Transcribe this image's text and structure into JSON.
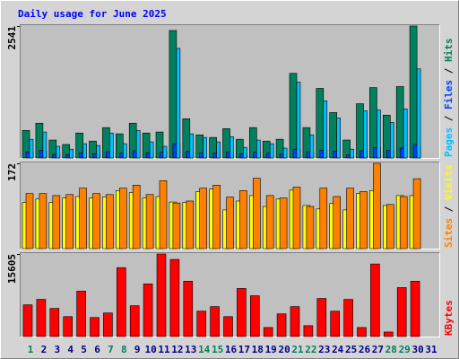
{
  "chart_data": [
    {
      "type": "bar",
      "title": "Daily usage for June 2025",
      "ylim": [
        0,
        2541
      ],
      "yticks": [
        2541
      ],
      "legend_separator": " / ",
      "series": [
        {
          "name": "Pages",
          "color": "#00c0ff",
          "values": [
            360,
            500,
            225,
            170,
            275,
            240,
            480,
            275,
            530,
            310,
            225,
            2110,
            465,
            395,
            310,
            410,
            205,
            345,
            275,
            190,
            1460,
            445,
            1100,
            770,
            170,
            910,
            925,
            685,
            945,
            1715,
            0
          ]
        },
        {
          "name": "Files",
          "color": "#0040ff",
          "values": [
            120,
            150,
            70,
            60,
            100,
            80,
            120,
            90,
            140,
            100,
            110,
            275,
            130,
            100,
            90,
            120,
            80,
            110,
            90,
            70,
            170,
            120,
            150,
            130,
            60,
            140,
            200,
            150,
            190,
            260,
            0
          ]
        },
        {
          "name": "Hits",
          "color": "#00805c",
          "values": [
            530,
            670,
            345,
            260,
            480,
            325,
            585,
            465,
            670,
            480,
            500,
            2455,
            755,
            445,
            395,
            565,
            360,
            585,
            325,
            360,
            1630,
            585,
            1340,
            875,
            345,
            1045,
            1355,
            825,
            1375,
            2541,
            0
          ]
        }
      ]
    },
    {
      "type": "bar",
      "ylim": [
        0,
        172
      ],
      "yticks": [
        172
      ],
      "legend_separator": " / ",
      "series": [
        {
          "name": "Sites",
          "color": "#ff8000",
          "values": [
            111,
            111,
            107,
            109,
            122,
            111,
            109,
            122,
            128,
            109,
            137,
            92,
            96,
            122,
            128,
            104,
            117,
            142,
            107,
            102,
            124,
            85,
            122,
            105,
            122,
            115,
            172,
            89,
            105,
            141,
            0
          ]
        },
        {
          "name": "Visits",
          "color": "#ffff00",
          "values": [
            93,
            100,
            93,
            102,
            105,
            102,
            104,
            117,
            113,
            102,
            105,
            94,
            93,
            115,
            120,
            78,
            96,
            107,
            85,
            100,
            118,
            87,
            80,
            91,
            78,
            111,
            117,
            87,
            107,
            107,
            0
          ]
        }
      ]
    },
    {
      "type": "bar",
      "ylim": [
        0,
        15605
      ],
      "yticks": [
        15605
      ],
      "series": [
        {
          "name": "KBytes",
          "color": "#ff0000",
          "values": [
            6000,
            7030,
            5320,
            3770,
            8580,
            3600,
            4460,
            13030,
            5830,
            9950,
            15605,
            14580,
            10460,
            4800,
            5660,
            3770,
            9090,
            7720,
            1715,
            4290,
            5660,
            2060,
            7200,
            4800,
            7030,
            1715,
            13720,
            860,
            9260,
            10460,
            0
          ]
        }
      ],
      "categories": [
        "1",
        "2",
        "3",
        "4",
        "5",
        "6",
        "7",
        "8",
        "9",
        "10",
        "11",
        "12",
        "13",
        "14",
        "15",
        "16",
        "17",
        "18",
        "19",
        "20",
        "21",
        "22",
        "23",
        "24",
        "25",
        "26",
        "27",
        "28",
        "29",
        "30",
        "31"
      ],
      "category_colors": [
        "#00805c",
        "#00008b",
        "#00008b",
        "#00008b",
        "#00008b",
        "#00008b",
        "#00805c",
        "#00805c",
        "#00008b",
        "#00008b",
        "#00008b",
        "#00008b",
        "#00008b",
        "#00805c",
        "#00805c",
        "#00008b",
        "#00008b",
        "#00008b",
        "#00008b",
        "#00008b",
        "#00805c",
        "#00805c",
        "#00008b",
        "#00008b",
        "#00008b",
        "#00008b",
        "#00008b",
        "#00805c",
        "#00805c",
        "#00008b",
        "#00008b"
      ]
    }
  ]
}
